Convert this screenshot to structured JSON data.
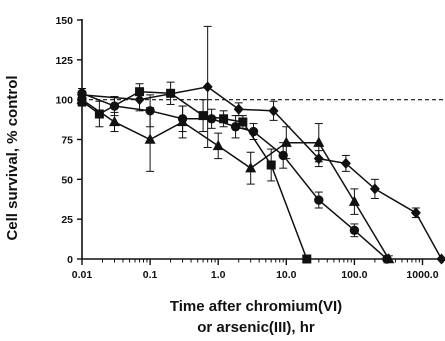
{
  "chart_data": {
    "type": "line",
    "xlabel": "Time after chromium(VI) or arsenic(III), hr",
    "xlabel_lines": [
      "Time after chromium(VI)",
      "or arsenic(III), hr"
    ],
    "ylabel": "Cell survival, % control",
    "x_scale": "log",
    "xlim": [
      0.01,
      2000
    ],
    "ylim": [
      0,
      150
    ],
    "x_ticks": [
      0.01,
      0.1,
      1.0,
      10.0,
      100.0,
      1000.0
    ],
    "x_tick_labels": [
      "0.01",
      "0.1",
      "1.0",
      "10.0",
      "100.0",
      "1000.0"
    ],
    "y_ticks": [
      0,
      25,
      50,
      75,
      100,
      125,
      150
    ],
    "y_tick_labels": [
      "0",
      "25",
      "50",
      "75",
      "100",
      "125",
      "150"
    ],
    "reference_line": {
      "y": 100,
      "style": "dashed"
    },
    "grid": false,
    "legend": "none",
    "color": "#111111",
    "series": [
      {
        "marker": "square",
        "points": [
          {
            "x": 0.01,
            "y": 99,
            "err": 3
          },
          {
            "x": 0.018,
            "y": 91,
            "err": 8
          },
          {
            "x": 0.07,
            "y": 105,
            "err": 5
          },
          {
            "x": 0.2,
            "y": 104,
            "err": 7
          },
          {
            "x": 0.6,
            "y": 90,
            "err": 10
          },
          {
            "x": 1.2,
            "y": 88,
            "err": 5
          },
          {
            "x": 2.3,
            "y": 86,
            "err": 4
          },
          {
            "x": 6,
            "y": 59,
            "err": 10
          },
          {
            "x": 20,
            "y": 0,
            "err": 0
          }
        ]
      },
      {
        "marker": "circle",
        "points": [
          {
            "x": 0.01,
            "y": 104,
            "err": 3
          },
          {
            "x": 0.03,
            "y": 96,
            "err": 6
          },
          {
            "x": 0.1,
            "y": 93,
            "err": 10
          },
          {
            "x": 0.3,
            "y": 88,
            "err": 8
          },
          {
            "x": 0.8,
            "y": 88,
            "err": 6
          },
          {
            "x": 1.8,
            "y": 83,
            "err": 7
          },
          {
            "x": 3.3,
            "y": 80,
            "err": 5
          },
          {
            "x": 9,
            "y": 65,
            "err": 8
          },
          {
            "x": 30,
            "y": 37,
            "err": 5
          },
          {
            "x": 100,
            "y": 18,
            "err": 4
          },
          {
            "x": 300,
            "y": 0,
            "err": 0
          }
        ]
      },
      {
        "marker": "triangle",
        "points": [
          {
            "x": 0.01,
            "y": 100,
            "err": 4
          },
          {
            "x": 0.03,
            "y": 86,
            "err": 6
          },
          {
            "x": 0.1,
            "y": 75,
            "err": 20
          },
          {
            "x": 0.3,
            "y": 86,
            "err": 10
          },
          {
            "x": 1.0,
            "y": 71,
            "err": 8
          },
          {
            "x": 3.0,
            "y": 57,
            "err": 10
          },
          {
            "x": 10,
            "y": 73,
            "err": 10
          },
          {
            "x": 30,
            "y": 73,
            "err": 12
          },
          {
            "x": 100,
            "y": 36,
            "err": 8
          },
          {
            "x": 320,
            "y": 0,
            "err": 2
          }
        ]
      },
      {
        "marker": "diamond",
        "points": [
          {
            "x": 0.01,
            "y": 103,
            "err": 4
          },
          {
            "x": 0.07,
            "y": 100,
            "err": 7
          },
          {
            "x": 0.7,
            "y": 108,
            "err": 38
          },
          {
            "x": 2.0,
            "y": 94,
            "err": 4
          },
          {
            "x": 6.5,
            "y": 93,
            "err": 6
          },
          {
            "x": 30,
            "y": 63,
            "err": 5
          },
          {
            "x": 75,
            "y": 60,
            "err": 5
          },
          {
            "x": 200,
            "y": 44,
            "err": 6
          },
          {
            "x": 800,
            "y": 29,
            "err": 3
          },
          {
            "x": 1900,
            "y": 0,
            "err": 0
          }
        ]
      }
    ]
  }
}
